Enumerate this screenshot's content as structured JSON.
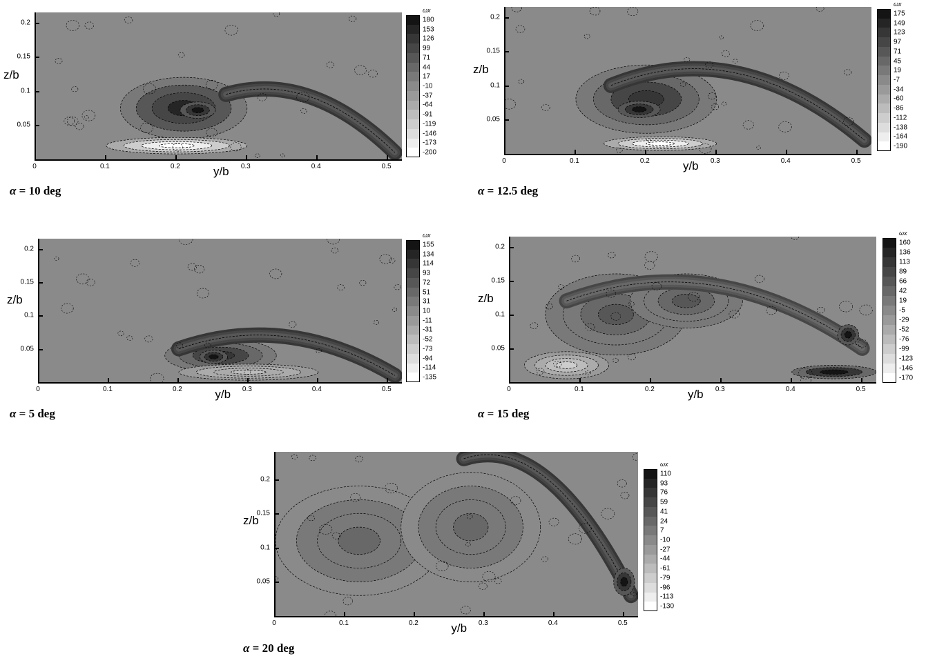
{
  "chart_data": [
    {
      "type": "heatmap",
      "id": "a10",
      "caption_symbol": "α",
      "caption_text": " = 10 deg",
      "xlabel": "y/b",
      "ylabel": "z/b",
      "xlim": [
        0,
        0.52
      ],
      "ylim": [
        0,
        0.215
      ],
      "x_ticks": [
        "0",
        "0.1",
        "0.2",
        "0.3",
        "0.4",
        "0.5"
      ],
      "y_ticks": [
        "0.05",
        "0.1",
        "0.15",
        "0.2"
      ],
      "legend_title": "ωx",
      "legend_levels": [
        "180",
        "153",
        "126",
        "99",
        "71",
        "44",
        "17",
        "-10",
        "-37",
        "-64",
        "-91",
        "-119",
        "-146",
        "-173",
        "-200"
      ],
      "features": [
        {
          "type": "vortex",
          "cx": 0.21,
          "cy": 0.075,
          "rx": 0.09,
          "ry": 0.045,
          "level": 6
        },
        {
          "type": "core",
          "cx": 0.23,
          "cy": 0.072,
          "rx": 0.025,
          "ry": 0.012,
          "level": 8
        },
        {
          "type": "sheet",
          "cx": 0.2,
          "cy": 0.02,
          "rx": 0.1,
          "ry": 0.012,
          "level": -8
        },
        {
          "type": "arc",
          "x0": 0.27,
          "y0": 0.095,
          "x1": 0.51,
          "y1": 0.01,
          "peak": 0.1,
          "level": 5
        }
      ]
    },
    {
      "type": "heatmap",
      "id": "a125",
      "caption_symbol": "α",
      "caption_text": " = 12.5 deg",
      "xlabel": "y/b",
      "ylabel": "z/b",
      "xlim": [
        0,
        0.52
      ],
      "ylim": [
        0,
        0.215
      ],
      "x_ticks": [
        "0",
        "0.1",
        "0.2",
        "0.3",
        "0.4",
        "0.5"
      ],
      "y_ticks": [
        "0.05",
        "0.1",
        "0.15",
        "0.2"
      ],
      "legend_title": "ωx",
      "legend_levels": [
        "175",
        "149",
        "123",
        "97",
        "71",
        "45",
        "19",
        "-7",
        "-34",
        "-60",
        "-86",
        "-112",
        "-138",
        "-164",
        "-190"
      ],
      "features": [
        {
          "type": "vortex",
          "cx": 0.2,
          "cy": 0.08,
          "rx": 0.1,
          "ry": 0.05,
          "level": 5
        },
        {
          "type": "core",
          "cx": 0.19,
          "cy": 0.065,
          "rx": 0.03,
          "ry": 0.012,
          "level": 8
        },
        {
          "type": "sheet",
          "cx": 0.22,
          "cy": 0.015,
          "rx": 0.08,
          "ry": 0.01,
          "level": -8
        },
        {
          "type": "arc",
          "x0": 0.15,
          "y0": 0.1,
          "x1": 0.51,
          "y1": 0.02,
          "peak": 0.145,
          "level": 5
        }
      ]
    },
    {
      "type": "heatmap",
      "id": "a5",
      "caption_symbol": "α",
      "caption_text": " = 5 deg",
      "xlabel": "y/b",
      "ylabel": "z/b",
      "xlim": [
        0,
        0.52
      ],
      "ylim": [
        0,
        0.215
      ],
      "x_ticks": [
        "0",
        "0.1",
        "0.2",
        "0.3",
        "0.4",
        "0.5"
      ],
      "y_ticks": [
        "0.05",
        "0.1",
        "0.15",
        "0.2"
      ],
      "legend_title": "ωx",
      "legend_levels": [
        "155",
        "134",
        "114",
        "93",
        "72",
        "51",
        "31",
        "10",
        "-11",
        "-31",
        "-52",
        "-73",
        "-94",
        "-114",
        "-135"
      ],
      "features": [
        {
          "type": "vortex",
          "cx": 0.26,
          "cy": 0.04,
          "rx": 0.08,
          "ry": 0.025,
          "level": 5
        },
        {
          "type": "core",
          "cx": 0.25,
          "cy": 0.038,
          "rx": 0.02,
          "ry": 0.01,
          "level": 8
        },
        {
          "type": "sheet",
          "cx": 0.3,
          "cy": 0.015,
          "rx": 0.1,
          "ry": 0.012,
          "level": -3
        },
        {
          "type": "arc",
          "x0": 0.2,
          "y0": 0.05,
          "x1": 0.51,
          "y1": 0.01,
          "peak": 0.075,
          "level": 5
        }
      ]
    },
    {
      "type": "heatmap",
      "id": "a15",
      "caption_symbol": "α",
      "caption_text": " = 15 deg",
      "xlabel": "y/b",
      "ylabel": "z/b",
      "xlim": [
        0,
        0.52
      ],
      "ylim": [
        0,
        0.215
      ],
      "x_ticks": [
        "0",
        "0.1",
        "0.2",
        "0.3",
        "0.4",
        "0.5"
      ],
      "y_ticks": [
        "0.05",
        "0.1",
        "0.15",
        "0.2"
      ],
      "legend_title": "ωx",
      "legend_levels": [
        "160",
        "136",
        "113",
        "89",
        "66",
        "42",
        "19",
        "-5",
        "-29",
        "-52",
        "-76",
        "-99",
        "-123",
        "-146",
        "-170"
      ],
      "features": [
        {
          "type": "vortex",
          "cx": 0.15,
          "cy": 0.1,
          "rx": 0.1,
          "ry": 0.06,
          "level": 3
        },
        {
          "type": "vortex",
          "cx": 0.25,
          "cy": 0.12,
          "rx": 0.08,
          "ry": 0.04,
          "level": 3
        },
        {
          "type": "sheet",
          "cx": 0.08,
          "cy": 0.025,
          "rx": 0.06,
          "ry": 0.02,
          "level": -4
        },
        {
          "type": "arc",
          "x0": 0.08,
          "y0": 0.12,
          "x1": 0.5,
          "y1": 0.05,
          "peak": 0.17,
          "level": 4
        },
        {
          "type": "core",
          "cx": 0.48,
          "cy": 0.07,
          "rx": 0.015,
          "ry": 0.015,
          "level": 8
        },
        {
          "type": "core",
          "cx": 0.46,
          "cy": 0.015,
          "rx": 0.06,
          "ry": 0.01,
          "level": 7
        }
      ]
    },
    {
      "type": "heatmap",
      "id": "a20",
      "caption_symbol": "α",
      "caption_text": " = 20 deg",
      "xlabel": "y/b",
      "ylabel": "z/b",
      "xlim": [
        0,
        0.52
      ],
      "ylim": [
        0,
        0.24
      ],
      "x_ticks": [
        "0",
        "0.1",
        "0.2",
        "0.3",
        "0.4",
        "0.5"
      ],
      "y_ticks": [
        "0.05",
        "0.1",
        "0.15",
        "0.2"
      ],
      "legend_title": "ωx",
      "legend_levels": [
        "110",
        "93",
        "76",
        "59",
        "41",
        "24",
        "7",
        "-10",
        "-27",
        "-44",
        "-61",
        "-79",
        "-96",
        "-113",
        "-130"
      ],
      "features": [
        {
          "type": "vortex",
          "cx": 0.12,
          "cy": 0.11,
          "rx": 0.12,
          "ry": 0.08,
          "level": 2
        },
        {
          "type": "vortex",
          "cx": 0.28,
          "cy": 0.13,
          "rx": 0.1,
          "ry": 0.08,
          "level": 2
        },
        {
          "type": "arc",
          "x0": 0.27,
          "y0": 0.23,
          "x1": 0.51,
          "y1": 0.03,
          "peak": 0.24,
          "level": 5
        },
        {
          "type": "core",
          "cx": 0.5,
          "cy": 0.05,
          "rx": 0.015,
          "ry": 0.02,
          "level": 8
        }
      ]
    }
  ]
}
